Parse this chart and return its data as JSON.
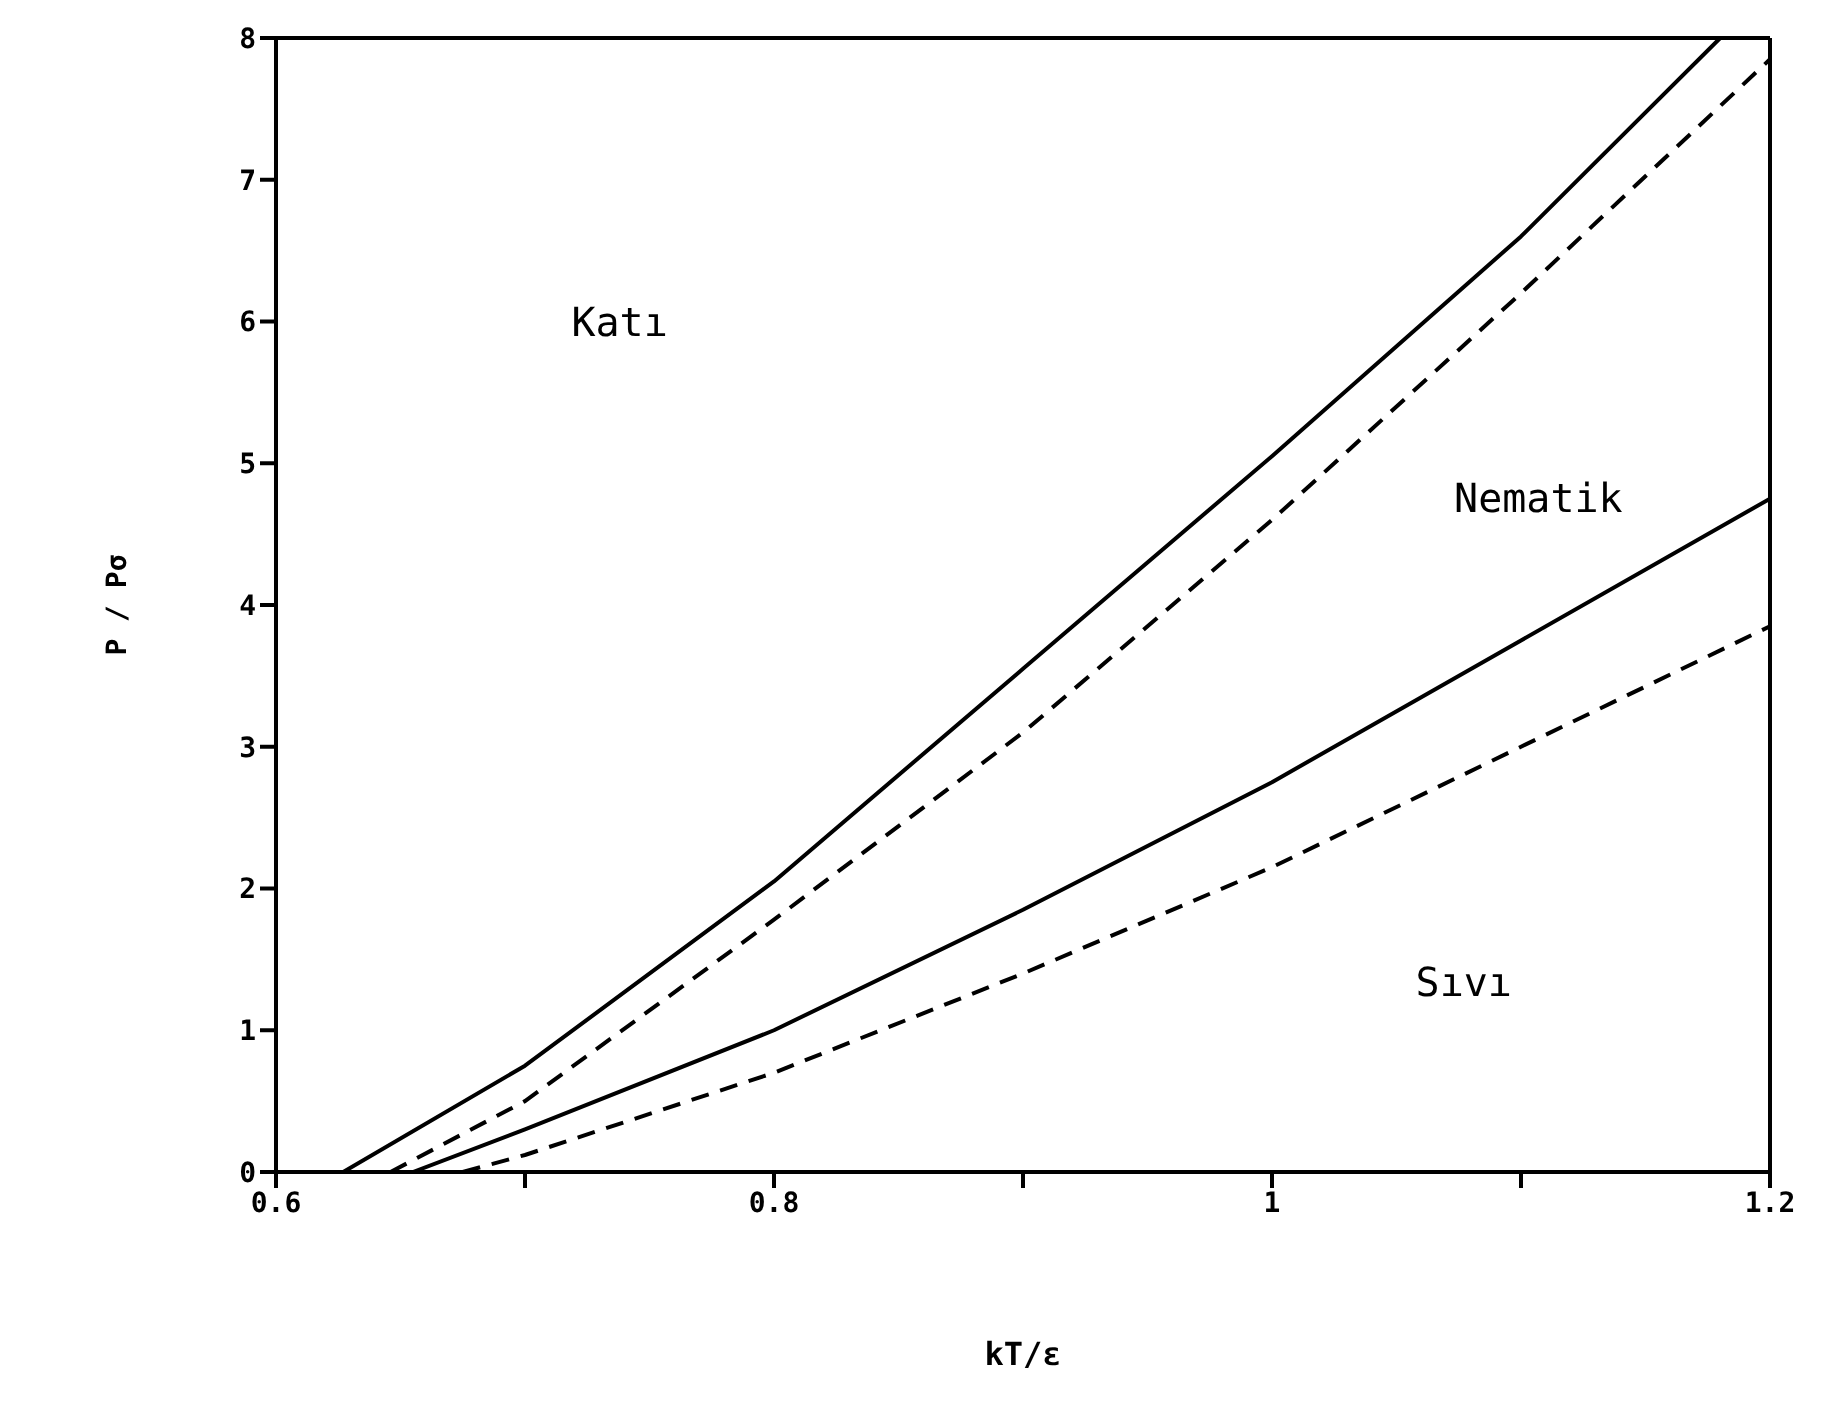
{
  "chart_data": {
    "type": "line",
    "xlabel": "kT/ε",
    "ylabel": "P / Pσ",
    "xlim": [
      0.6,
      1.2
    ],
    "ylim": [
      0,
      8
    ],
    "xticks": [
      0.6,
      {
        "value": 0.7,
        "label": null
      },
      0.8,
      {
        "value": 0.9,
        "label": null
      },
      1,
      {
        "value": 1.1,
        "label": null
      },
      1.2
    ],
    "yticks": [
      0,
      1,
      2,
      3,
      4,
      5,
      6,
      7,
      8
    ],
    "grid": false,
    "legend": false,
    "marker": "none",
    "series": [
      {
        "color": "#000000",
        "line_style": "solid",
        "x": [
          0.627,
          0.7,
          0.8,
          0.9,
          1.0,
          1.1,
          1.18
        ],
        "values": [
          0,
          0.75,
          2.05,
          3.55,
          5.05,
          6.6,
          8
        ]
      },
      {
        "color": "#000000",
        "line_style": "dashed",
        "x": [
          0.646,
          0.7,
          0.8,
          0.9,
          1.0,
          1.1,
          1.2
        ],
        "values": [
          0,
          0.5,
          1.78,
          3.1,
          4.6,
          6.2,
          7.85
        ]
      },
      {
        "color": "#000000",
        "line_style": "solid",
        "x": [
          0.655,
          0.7,
          0.8,
          0.9,
          1.0,
          1.1,
          1.2
        ],
        "values": [
          0,
          0.3,
          1.0,
          1.85,
          2.75,
          3.75,
          4.75
        ]
      },
      {
        "color": "#000000",
        "line_style": "dashed",
        "x": [
          0.675,
          0.7,
          0.8,
          0.9,
          1.0,
          1.1,
          1.2
        ],
        "values": [
          0,
          0.12,
          0.7,
          1.4,
          2.15,
          3.0,
          3.85
        ]
      }
    ],
    "annotations": [
      "Katı",
      "Nematik",
      "Sıvı"
    ]
  }
}
